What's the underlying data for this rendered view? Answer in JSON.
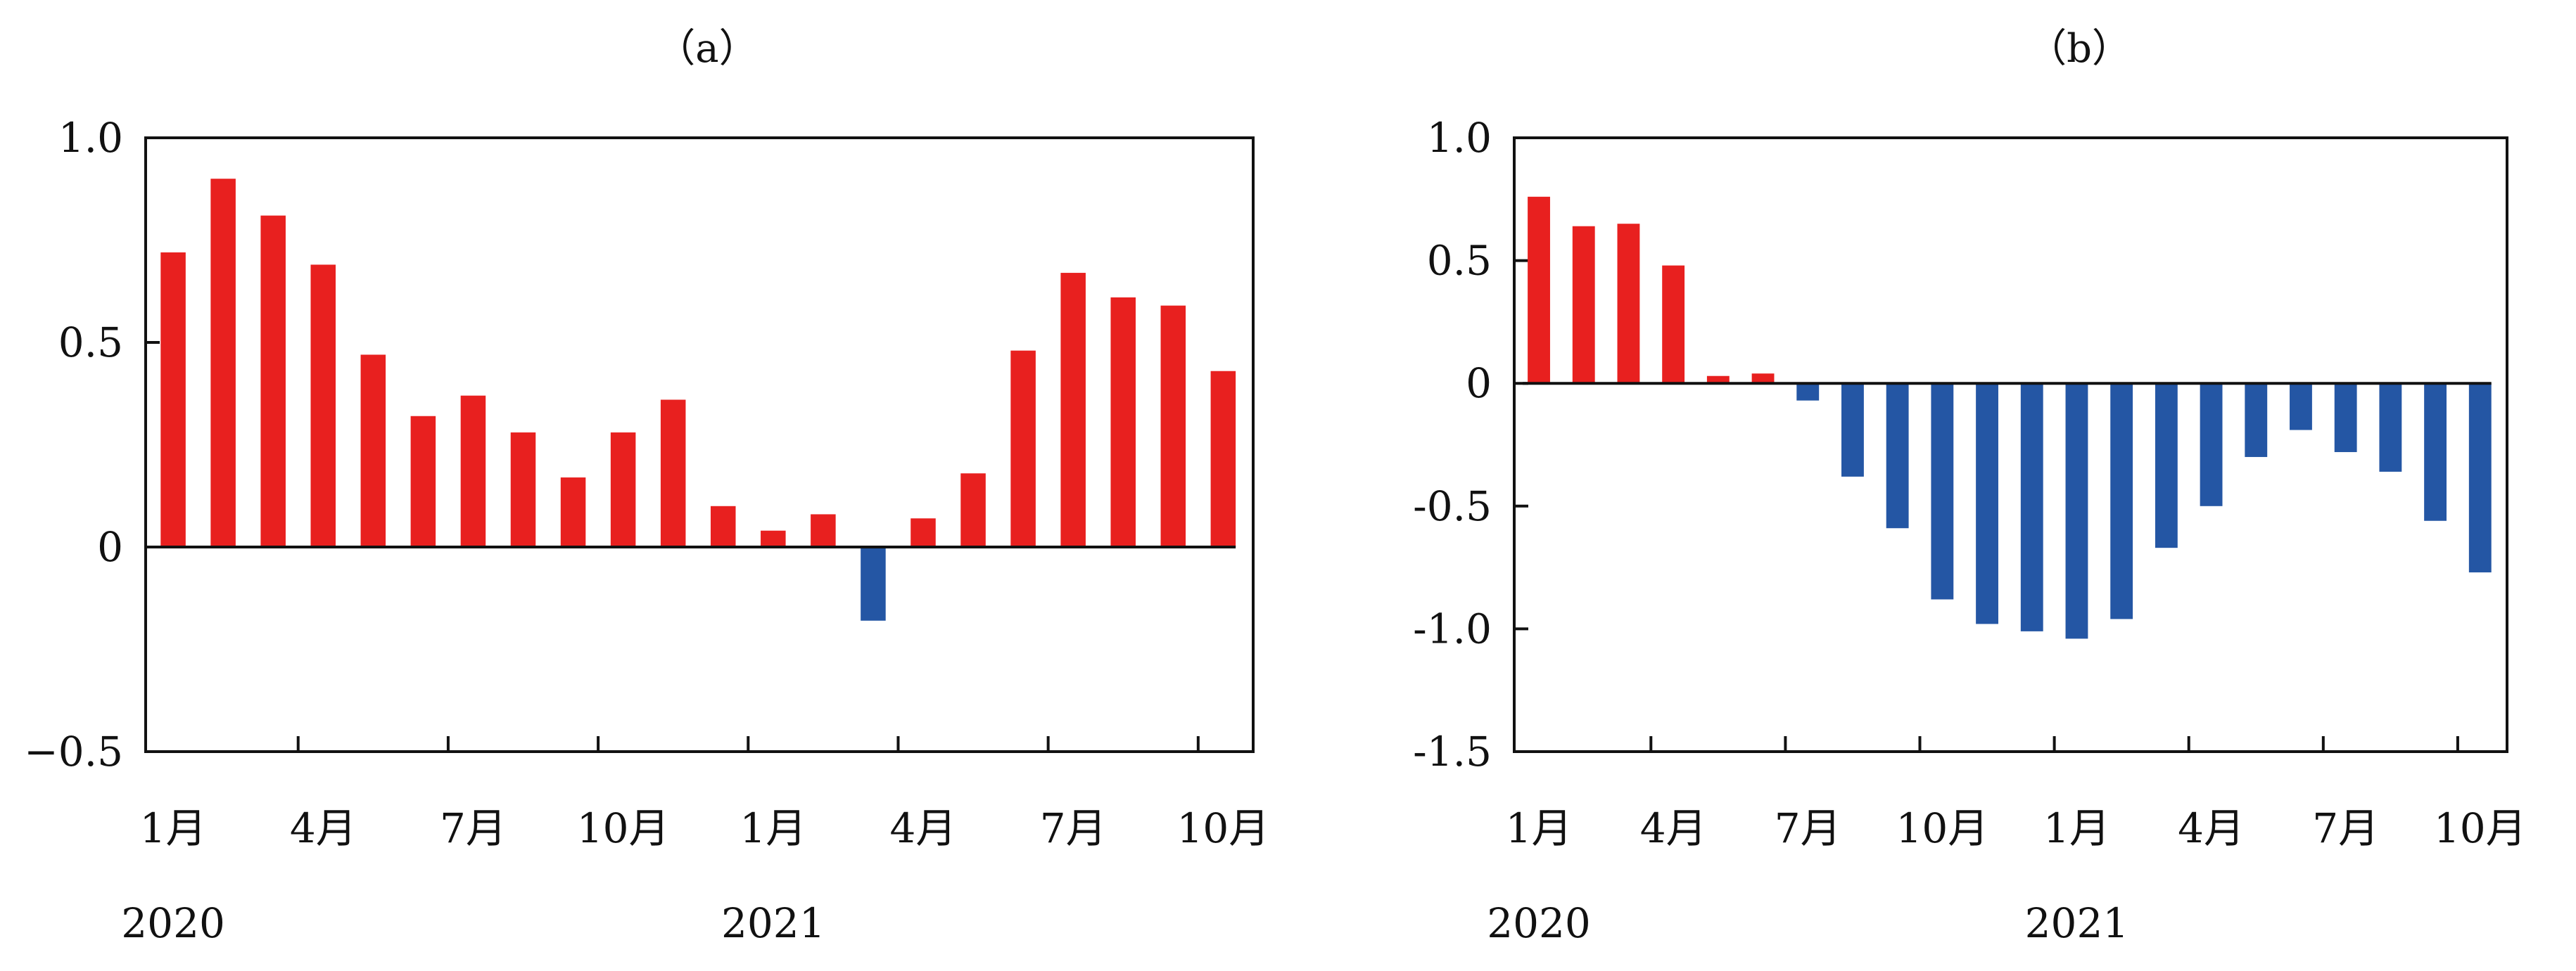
{
  "colors": {
    "positive": "#E8201F",
    "negative": "#2456A4",
    "axis": "#111111"
  },
  "chart_data": [
    {
      "type": "bar",
      "title": "（a）",
      "ylim": [
        -0.5,
        1.0
      ],
      "yticks": [
        1.0,
        0.5,
        0,
        -0.5
      ],
      "ytick_labels": [
        "1.0",
        "0.5",
        "0",
        "−0.5"
      ],
      "month_labels": [
        {
          "index": 0,
          "label": "1月"
        },
        {
          "index": 3,
          "label": "4月"
        },
        {
          "index": 6,
          "label": "7月"
        },
        {
          "index": 9,
          "label": "10月"
        },
        {
          "index": 12,
          "label": "1月"
        },
        {
          "index": 15,
          "label": "4月"
        },
        {
          "index": 18,
          "label": "7月"
        },
        {
          "index": 21,
          "label": "10月"
        }
      ],
      "year_labels": [
        {
          "index": 0,
          "label": "2020"
        },
        {
          "index": 12,
          "label": "2021"
        }
      ],
      "values": [
        0.72,
        0.9,
        0.81,
        0.69,
        0.47,
        0.32,
        0.37,
        0.28,
        0.17,
        0.28,
        0.36,
        0.1,
        0.04,
        0.08,
        -0.18,
        0.07,
        0.18,
        0.48,
        0.67,
        0.61,
        0.59,
        0.43
      ]
    },
    {
      "type": "bar",
      "title": "（b）",
      "ylim": [
        -1.5,
        1.0
      ],
      "yticks": [
        1.0,
        0.5,
        0,
        -0.5,
        -1.0,
        -1.5
      ],
      "ytick_labels": [
        "1.0",
        "0.5",
        "0",
        "-0.5",
        "-1.0",
        "-1.5"
      ],
      "month_labels": [
        {
          "index": 0,
          "label": "1月"
        },
        {
          "index": 3,
          "label": "4月"
        },
        {
          "index": 6,
          "label": "7月"
        },
        {
          "index": 9,
          "label": "10月"
        },
        {
          "index": 12,
          "label": "1月"
        },
        {
          "index": 15,
          "label": "4月"
        },
        {
          "index": 18,
          "label": "7月"
        },
        {
          "index": 21,
          "label": "10月"
        }
      ],
      "year_labels": [
        {
          "index": 0,
          "label": "2020"
        },
        {
          "index": 12,
          "label": "2021"
        }
      ],
      "values": [
        0.76,
        0.64,
        0.65,
        0.48,
        0.03,
        0.04,
        -0.07,
        -0.38,
        -0.59,
        -0.88,
        -0.98,
        -1.01,
        -1.04,
        -0.96,
        -0.67,
        -0.5,
        -0.3,
        -0.19,
        -0.28,
        -0.36,
        -0.56,
        -0.77
      ]
    }
  ]
}
